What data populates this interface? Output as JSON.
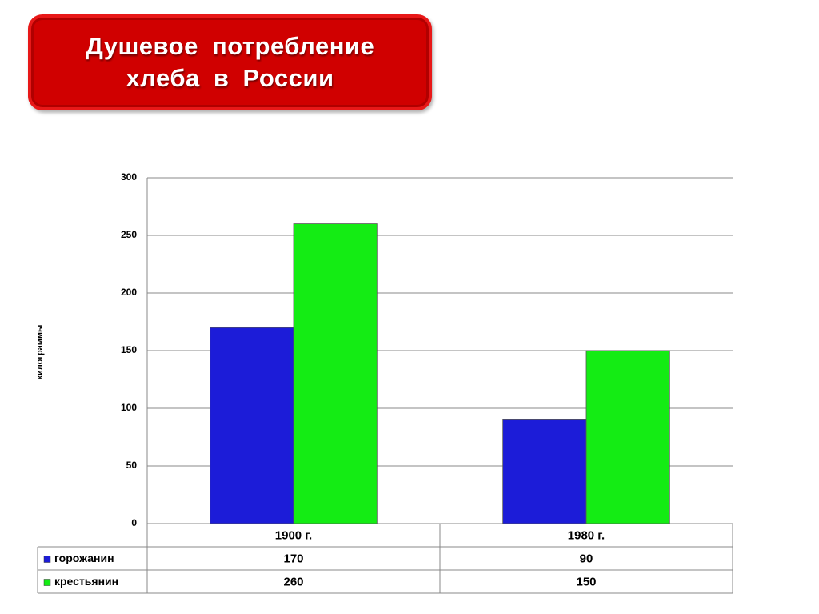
{
  "chart_data": {
    "type": "bar",
    "title": "Душевое потребление хлеба в России",
    "y_label": "килограммы",
    "categories": [
      "1900 г.",
      "1980 г."
    ],
    "series": [
      {
        "name": "горожанин",
        "color": "#1c1cd8",
        "values": [
          170,
          90
        ]
      },
      {
        "name": "крестьянин",
        "color": "#14ec14",
        "values": [
          260,
          150
        ]
      }
    ],
    "ylim": [
      0,
      300
    ],
    "yticks": [
      0,
      50,
      100,
      150,
      200,
      250,
      300
    ],
    "grid": true
  }
}
